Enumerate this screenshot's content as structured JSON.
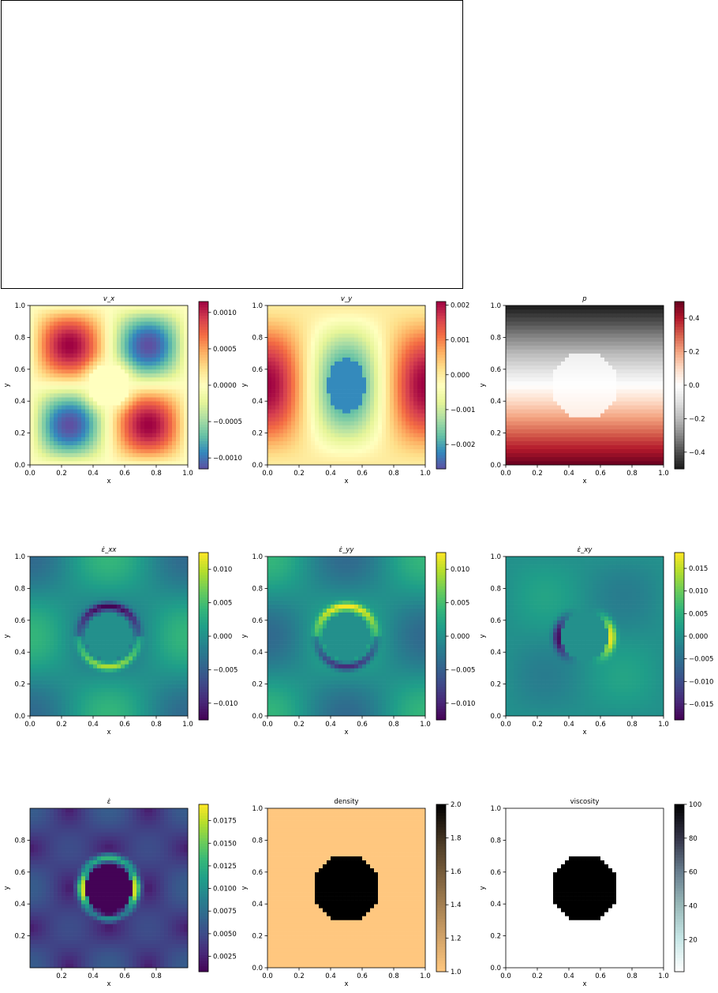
{
  "chart_data": [
    {
      "type": "heatmap",
      "title": "v_x",
      "xlabel": "x",
      "ylabel": "y",
      "xlim": [
        0,
        1
      ],
      "ylim": [
        0,
        1
      ],
      "xticks": [
        "0.0",
        "0.2",
        "0.4",
        "0.6",
        "0.8",
        "1.0"
      ],
      "yticks": [
        "0.0",
        "0.2",
        "0.4",
        "0.6",
        "0.8",
        "1.0"
      ],
      "field": "vx",
      "colormap": "Spectral_r",
      "colorbar": {
        "min": -0.00115,
        "max": 0.00115,
        "ticks": [
          -0.001,
          -0.0005,
          0,
          0.0005,
          0.001
        ],
        "tick_labels": [
          "−0.0010",
          "−0.0005",
          "0.0000",
          "0.0005",
          "0.0010"
        ]
      }
    },
    {
      "type": "heatmap",
      "title": "v_y",
      "xlabel": "x",
      "ylabel": "y",
      "xlim": [
        0,
        1
      ],
      "ylim": [
        0,
        1
      ],
      "xticks": [
        "0.0",
        "0.2",
        "0.4",
        "0.6",
        "0.8",
        "1.0"
      ],
      "yticks": [
        "0.0",
        "0.2",
        "0.4",
        "0.6",
        "0.8",
        "1.0"
      ],
      "field": "vy",
      "colormap": "Spectral_r",
      "colorbar": {
        "min": -0.0027,
        "max": 0.0021,
        "ticks": [
          -0.002,
          -0.001,
          0,
          0.001,
          0.002
        ],
        "tick_labels": [
          "−0.002",
          "−0.001",
          "0.000",
          "0.001",
          "0.002"
        ]
      }
    },
    {
      "type": "heatmap",
      "title": "p",
      "xlabel": "x",
      "ylabel": "y",
      "xlim": [
        0,
        1
      ],
      "ylim": [
        0,
        1
      ],
      "xticks": [
        "0.0",
        "0.2",
        "0.4",
        "0.6",
        "0.8",
        "1.0"
      ],
      "yticks": [
        "0.0",
        "0.2",
        "0.4",
        "0.6",
        "0.8",
        "1.0"
      ],
      "field": "p",
      "colormap": "RdGy_r",
      "colorbar": {
        "min": -0.5,
        "max": 0.5,
        "ticks": [
          -0.4,
          -0.2,
          0,
          0.2,
          0.4
        ],
        "tick_labels": [
          "−0.4",
          "−0.2",
          "0.0",
          "0.2",
          "0.4"
        ]
      }
    },
    {
      "type": "heatmap",
      "title": "ε̇_xx",
      "xlabel": "x",
      "ylabel": "y",
      "xlim": [
        0,
        1
      ],
      "ylim": [
        0,
        1
      ],
      "xticks": [
        "0.0",
        "0.2",
        "0.4",
        "0.6",
        "0.8",
        "1.0"
      ],
      "yticks": [
        "0.0",
        "0.2",
        "0.4",
        "0.6",
        "0.8",
        "1.0"
      ],
      "field": "exx",
      "colormap": "viridis",
      "colorbar": {
        "min": -0.0125,
        "max": 0.0125,
        "ticks": [
          -0.01,
          -0.005,
          0,
          0.005,
          0.01
        ],
        "tick_labels": [
          "−0.010",
          "−0.005",
          "0.000",
          "0.005",
          "0.010"
        ]
      }
    },
    {
      "type": "heatmap",
      "title": "ε̇_yy",
      "xlabel": "x",
      "ylabel": "y",
      "xlim": [
        0,
        1
      ],
      "ylim": [
        0,
        1
      ],
      "xticks": [
        "0.0",
        "0.2",
        "0.4",
        "0.6",
        "0.8",
        "1.0"
      ],
      "yticks": [
        "0.0",
        "0.2",
        "0.4",
        "0.6",
        "0.8",
        "1.0"
      ],
      "field": "eyy",
      "colormap": "viridis",
      "colorbar": {
        "min": -0.0125,
        "max": 0.0125,
        "ticks": [
          -0.01,
          -0.005,
          0,
          0.005,
          0.01
        ],
        "tick_labels": [
          "−0.010",
          "−0.005",
          "0.000",
          "0.005",
          "0.010"
        ]
      }
    },
    {
      "type": "heatmap",
      "title": "ε̇_xy",
      "xlabel": "x",
      "ylabel": "y",
      "xlim": [
        0,
        1
      ],
      "ylim": [
        0,
        1
      ],
      "xticks": [
        "0.0",
        "0.2",
        "0.4",
        "0.6",
        "0.8",
        "1.0"
      ],
      "yticks": [
        "0.0",
        "0.2",
        "0.4",
        "0.6",
        "0.8",
        "1.0"
      ],
      "field": "exy",
      "colormap": "viridis",
      "colorbar": {
        "min": -0.0185,
        "max": 0.0185,
        "ticks": [
          -0.015,
          -0.01,
          -0.005,
          0,
          0.005,
          0.01,
          0.015
        ],
        "tick_labels": [
          "−0.015",
          "−0.010",
          "−0.005",
          "0.000",
          "0.005",
          "0.010",
          "0.015"
        ]
      }
    },
    {
      "type": "heatmap",
      "title": "ε̇",
      "xlabel": "x",
      "ylabel": "y",
      "xlim": [
        0,
        1
      ],
      "ylim": [
        0,
        1
      ],
      "xticks": [
        "0.2",
        "0.4",
        "0.6",
        "0.8"
      ],
      "yticks": [
        "0.2",
        "0.4",
        "0.6",
        "0.8"
      ],
      "field": "e",
      "colormap": "viridis",
      "colorbar": {
        "min": 0.0008,
        "max": 0.0193,
        "ticks": [
          0.0025,
          0.005,
          0.0075,
          0.01,
          0.0125,
          0.015,
          0.0175
        ],
        "tick_labels": [
          "0.0025",
          "0.0050",
          "0.0075",
          "0.0100",
          "0.0125",
          "0.0150",
          "0.0175"
        ]
      }
    },
    {
      "type": "heatmap",
      "title": "density",
      "xlabel": "x",
      "ylabel": "y",
      "xlim": [
        0,
        1
      ],
      "ylim": [
        0,
        1
      ],
      "xticks": [
        "0.0",
        "0.2",
        "0.4",
        "0.6",
        "0.8",
        "1.0"
      ],
      "yticks": [
        "0.0",
        "0.2",
        "0.4",
        "0.6",
        "0.8",
        "1.0"
      ],
      "field": "density",
      "colormap": "copper_r",
      "colorbar": {
        "min": 1.0,
        "max": 2.0,
        "ticks": [
          1.0,
          1.2,
          1.4,
          1.6,
          1.8,
          2.0
        ],
        "tick_labels": [
          "1.0",
          "1.2",
          "1.4",
          "1.6",
          "1.8",
          "2.0"
        ]
      }
    },
    {
      "type": "heatmap",
      "title": "viscosity",
      "xlabel": "x",
      "ylabel": "y",
      "xlim": [
        0,
        1
      ],
      "ylim": [
        0,
        1
      ],
      "xticks": [
        "0.0",
        "0.2",
        "0.4",
        "0.6",
        "0.8",
        "1.0"
      ],
      "yticks": [
        "0.0",
        "0.2",
        "0.4",
        "0.6",
        "0.8",
        "1.0"
      ],
      "field": "viscosity",
      "colormap": "bone_r",
      "colorbar": {
        "min": 1,
        "max": 100,
        "ticks": [
          20,
          40,
          60,
          80,
          100
        ],
        "tick_labels": [
          "20",
          "40",
          "60",
          "80",
          "100"
        ]
      }
    }
  ]
}
